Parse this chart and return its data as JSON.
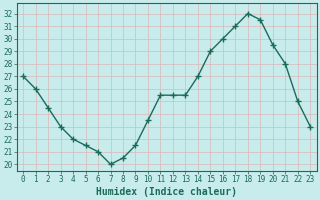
{
  "x": [
    0,
    1,
    2,
    3,
    4,
    5,
    6,
    7,
    8,
    9,
    10,
    11,
    12,
    13,
    14,
    15,
    16,
    17,
    18,
    19,
    20,
    21,
    22,
    23
  ],
  "y": [
    27,
    26,
    24.5,
    23,
    22,
    21.5,
    21,
    20,
    20.5,
    21.5,
    23.5,
    25.5,
    25.5,
    25.5,
    27,
    29,
    30,
    31,
    32,
    31.5,
    29.5,
    28,
    25,
    23
  ],
  "line_color": "#1a6b5a",
  "marker": "+",
  "marker_size": 4,
  "marker_lw": 1.0,
  "bg_color": "#c8ecec",
  "grid_color": "#d8b8b8",
  "axis_color": "#1a6b5a",
  "xlabel": "Humidex (Indice chaleur)",
  "xlabel_fontsize": 7,
  "ylabel_ticks": [
    20,
    21,
    22,
    23,
    24,
    25,
    26,
    27,
    28,
    29,
    30,
    31,
    32
  ],
  "ylim": [
    19.5,
    32.8
  ],
  "xlim": [
    -0.5,
    23.5
  ],
  "xticks": [
    0,
    1,
    2,
    3,
    4,
    5,
    6,
    7,
    8,
    9,
    10,
    11,
    12,
    13,
    14,
    15,
    16,
    17,
    18,
    19,
    20,
    21,
    22,
    23
  ],
  "tick_fontsize": 5.5,
  "linewidth": 1.0
}
